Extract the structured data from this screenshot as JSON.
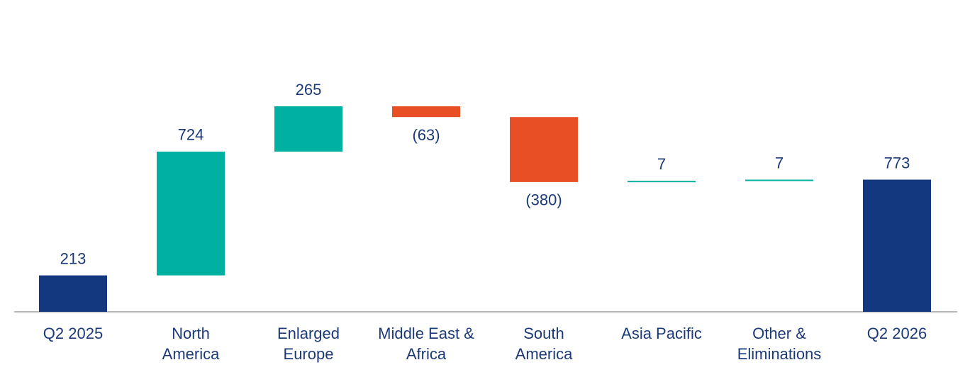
{
  "chart_data": {
    "type": "waterfall",
    "categories": [
      "Q2 2025",
      "North\nAmerica",
      "Enlarged\nEurope",
      "Middle East &\nAfrica",
      "South\nAmerica",
      "Asia Pacific",
      "Other &\nEliminations",
      "Q2 2026"
    ],
    "values": [
      213,
      724,
      265,
      -63,
      -380,
      7,
      7,
      773
    ],
    "value_labels": [
      "213",
      "724",
      "265",
      "(63)",
      "(380)",
      "7",
      "7",
      "773"
    ],
    "measures": [
      "total",
      "relative",
      "relative",
      "relative",
      "relative",
      "relative",
      "relative",
      "total"
    ],
    "colors": [
      "#14387f",
      "#00b0a0",
      "#00b0a0",
      "#e84f24",
      "#e84f24",
      "#00b0a0",
      "#00b0a0",
      "#14387f"
    ]
  }
}
